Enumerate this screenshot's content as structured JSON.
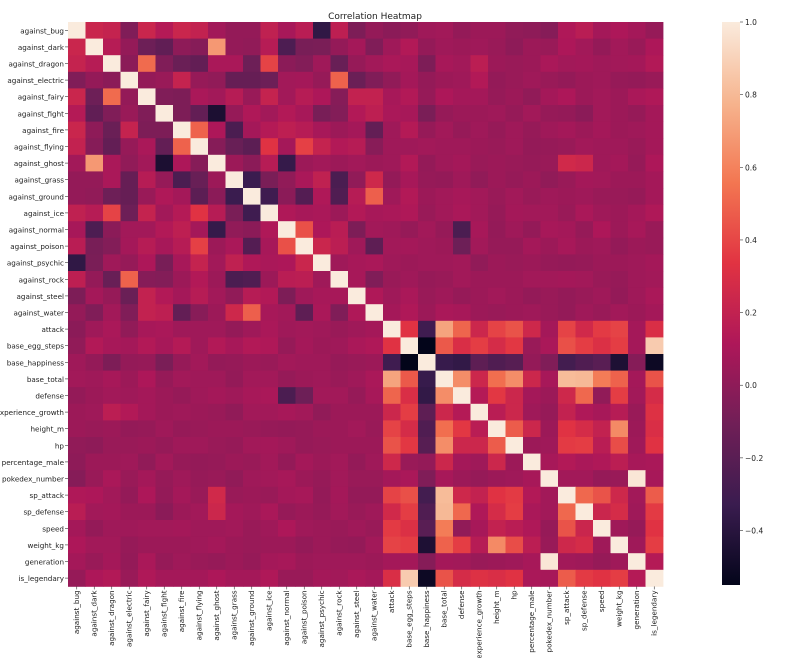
{
  "chart_data": {
    "type": "heatmap",
    "title": "Correlation Heatmap",
    "labels": [
      "against_bug",
      "against_dark",
      "against_dragon",
      "against_electric",
      "against_fairy",
      "against_fight",
      "against_fire",
      "against_flying",
      "against_ghost",
      "against_grass",
      "against_ground",
      "against_ice",
      "against_normal",
      "against_poison",
      "against_psychic",
      "against_rock",
      "against_steel",
      "against_water",
      "attack",
      "base_egg_steps",
      "base_happiness",
      "base_total",
      "defense",
      "experience_growth",
      "height_m",
      "hp",
      "percentage_male",
      "pokedex_number",
      "sp_attack",
      "sp_defense",
      "speed",
      "weight_kg",
      "generation",
      "is_legendary"
    ],
    "colorbar": {
      "min": -0.55,
      "max": 1.0,
      "ticks": [
        -0.4,
        -0.2,
        0.0,
        0.2,
        0.4,
        0.6,
        0.8,
        1.0
      ],
      "tick_labels": [
        "−0.4",
        "−0.2",
        "0.0",
        "0.2",
        "0.4",
        "0.6",
        "0.8",
        "1.0"
      ]
    },
    "colormap": [
      "#03051a",
      "#3a1c4f",
      "#701f57",
      "#ae1759",
      "#e13342",
      "#f37651",
      "#f6b48e",
      "#faebdd"
    ],
    "matrix": [
      [
        1,
        0.23,
        0.21,
        -0.05,
        0.23,
        0.14,
        0.23,
        0.2,
        0.07,
        0.02,
        0.02,
        0.19,
        0.09,
        0.16,
        -0.37,
        0.18,
        -0.06,
        0.02,
        -0.01,
        0.01,
        0.06,
        0.07,
        0.02,
        0.05,
        0.05,
        0.01,
        0,
        -0.03,
        0.12,
        0.16,
        0.08,
        0.11,
        0.08,
        0.03
      ],
      [
        0.23,
        1,
        0.15,
        0.02,
        -0.12,
        -0.17,
        0,
        -0.03,
        0.68,
        0.02,
        0.01,
        0.15,
        -0.25,
        -0.08,
        -0.07,
        0.02,
        0.08,
        -0.05,
        0.06,
        0.13,
        0.02,
        0.06,
        0.05,
        0.06,
        0.04,
        0,
        0.05,
        0.04,
        0.11,
        0.07,
        0.02,
        0.07,
        0.04,
        0.11
      ],
      [
        0.21,
        0.15,
        1,
        -0.01,
        0.52,
        -0.05,
        -0.13,
        -0.16,
        0.1,
        0.1,
        -0.12,
        0.39,
        -0.01,
        -0.04,
        0.06,
        -0.14,
        0.03,
        0.07,
        0.1,
        0.09,
        -0.06,
        0.09,
        0.07,
        0.17,
        0.05,
        0.04,
        0.05,
        0.1,
        0.07,
        0.08,
        0.06,
        0.07,
        0.08,
        0.13
      ],
      [
        -0.05,
        0.02,
        -0.01,
        1,
        0.02,
        0.04,
        0.21,
        0.03,
        0.01,
        -0.15,
        -0.15,
        -0.12,
        0.07,
        0.08,
        0.03,
        0.49,
        -0.13,
        -0.05,
        0.01,
        0.08,
        0.02,
        0.05,
        0.06,
        0.13,
        0.02,
        0.04,
        0.06,
        0.04,
        0.02,
        0.05,
        0.06,
        0.03,
        0.02,
        0.04
      ],
      [
        0.23,
        -0.12,
        0.52,
        0.02,
        1,
        -0.05,
        -0.06,
        0.1,
        0.07,
        0.15,
        0.04,
        0.21,
        0.07,
        0.15,
        0.11,
        -0.03,
        0.2,
        0.2,
        0.09,
        0.13,
        0.03,
        0.11,
        0.08,
        0.08,
        0.03,
        0.05,
        0.01,
        0.08,
        0.11,
        0.05,
        0.07,
        0.05,
        0.1,
        0.12
      ],
      [
        0.14,
        -0.17,
        -0.05,
        0.04,
        -0.05,
        1,
        -0.06,
        -0.16,
        -0.45,
        0.03,
        0.12,
        0.07,
        0.13,
        0.09,
        -0.08,
        -0.04,
        0.13,
        0.18,
        0.1,
        0.09,
        -0.07,
        0.03,
        0.05,
        0.05,
        0.06,
        0.03,
        0.07,
        0.03,
        0.02,
        -0.01,
        0.07,
        0.05,
        0.03,
        0.08
      ],
      [
        0.23,
        0,
        -0.13,
        0.21,
        -0.06,
        -0.06,
        1,
        0.49,
        0.11,
        -0.26,
        0.08,
        0.14,
        0.18,
        0.15,
        0.09,
        0.05,
        0.08,
        -0.16,
        0.06,
        0.14,
        0.03,
        0.07,
        0.03,
        0.06,
        0.03,
        0.06,
        0.03,
        0.06,
        0.08,
        0.05,
        0.08,
        0.05,
        0.06,
        0.08
      ],
      [
        0.2,
        -0.03,
        -0.16,
        0.03,
        0.1,
        -0.16,
        0.49,
        1,
        -0.03,
        -0.14,
        -0.19,
        0.33,
        0.08,
        0.38,
        0.21,
        0.13,
        0.15,
        -0.02,
        0.06,
        0.06,
        0.07,
        0.06,
        0.06,
        0.05,
        0.04,
        0.06,
        0.02,
        0.03,
        0.04,
        0.07,
        0.06,
        0.06,
        0.04,
        0.08
      ],
      [
        0.07,
        0.68,
        0.1,
        0.01,
        0.07,
        -0.45,
        0.11,
        -0.03,
        1,
        0.05,
        -0.01,
        0.15,
        -0.35,
        0.05,
        0.07,
        0.05,
        0.07,
        0.05,
        0.06,
        0.13,
        0.02,
        0.06,
        0.08,
        0.04,
        0.05,
        0.04,
        0.03,
        0.04,
        0.26,
        0.24,
        0.06,
        0.08,
        0.03,
        0.11
      ],
      [
        0.02,
        0.02,
        0.1,
        -0.15,
        0.15,
        0.03,
        -0.26,
        -0.14,
        0.05,
        1,
        -0.33,
        -0.07,
        0.01,
        0.1,
        0.19,
        -0.26,
        0.01,
        0.25,
        0.02,
        0.09,
        0.03,
        0.02,
        0.06,
        0.01,
        0.05,
        0.03,
        0.05,
        0.01,
        0.04,
        0.08,
        0.07,
        0.05,
        0.05,
        0.08
      ],
      [
        0.02,
        0.01,
        -0.12,
        -0.15,
        0.04,
        0.12,
        0.08,
        -0.19,
        -0.01,
        -0.33,
        1,
        -0.31,
        -0.01,
        -0.22,
        0.12,
        -0.24,
        0.15,
        0.48,
        0.06,
        0.13,
        0.05,
        0.07,
        0.09,
        0.07,
        0.04,
        0.07,
        0.04,
        0.06,
        0.05,
        0.06,
        0.04,
        0.04,
        0.03,
        0.08
      ],
      [
        0.19,
        0.15,
        0.39,
        -0.12,
        0.21,
        0.07,
        0.14,
        0.33,
        0.15,
        -0.07,
        -0.31,
        1,
        0.12,
        0.09,
        0.1,
        0.05,
        0.13,
        0.09,
        0.1,
        0.12,
        0.04,
        0.07,
        0.1,
        0.07,
        0.03,
        0.08,
        0.07,
        0.07,
        0.04,
        0.1,
        0.06,
        0.05,
        0.08,
        0.12
      ],
      [
        0.09,
        -0.25,
        -0.01,
        0.07,
        0.07,
        0.13,
        0.18,
        0.08,
        -0.35,
        0.01,
        -0.01,
        0.12,
        1,
        0.43,
        0.11,
        0.16,
        -0.06,
        0.07,
        0.06,
        0.03,
        0.07,
        0.03,
        -0.26,
        0.09,
        0.02,
        0.06,
        0.02,
        0.09,
        0.08,
        0.03,
        0.11,
        0.05,
        0.09,
        0.04
      ],
      [
        0.16,
        -0.08,
        -0.04,
        0.08,
        0.15,
        0.09,
        0.15,
        0.38,
        0.05,
        0.1,
        -0.22,
        0.09,
        0.43,
        1,
        0.23,
        0.17,
        0.06,
        -0.18,
        0.07,
        0.08,
        0.06,
        0.05,
        -0.12,
        0.07,
        0.03,
        0.03,
        0.08,
        0.05,
        0.09,
        0.05,
        0.06,
        0.02,
        0.05,
        0.04
      ],
      [
        -0.37,
        -0.07,
        0.06,
        0.03,
        0.11,
        -0.08,
        0.09,
        0.21,
        0.07,
        0.19,
        0.12,
        0.1,
        0.11,
        0.23,
        1,
        0.06,
        0.09,
        0.1,
        0.06,
        0.05,
        0.06,
        0.06,
        0.07,
        0.01,
        0.05,
        0.04,
        0.05,
        0.03,
        0.02,
        0.03,
        0.05,
        0.05,
        0.06,
        0.08
      ],
      [
        0.18,
        0.02,
        -0.14,
        0.49,
        -0.03,
        -0.04,
        0.05,
        0.13,
        0.05,
        -0.26,
        -0.24,
        0.05,
        0.16,
        0.17,
        0.06,
        1,
        0.09,
        -0.05,
        0.04,
        0.06,
        0.03,
        0.04,
        0.07,
        0.05,
        0.05,
        0.05,
        0.07,
        0.07,
        0.08,
        0.07,
        0.04,
        0.03,
        0.06,
        0.07
      ],
      [
        -0.06,
        0.08,
        0.03,
        -0.13,
        0.2,
        0.13,
        0.08,
        0.15,
        0.07,
        0.01,
        0.15,
        0.13,
        -0.06,
        0.06,
        0.09,
        0.09,
        1,
        0.12,
        0.06,
        0.1,
        0.04,
        0.06,
        0.03,
        0.05,
        0.07,
        0.05,
        0.02,
        0.04,
        0.02,
        0.04,
        0.06,
        0.02,
        0.06,
        0.1
      ],
      [
        0.02,
        -0.05,
        0.07,
        -0.05,
        0.2,
        0.18,
        -0.16,
        -0.02,
        0.05,
        0.25,
        0.48,
        0.09,
        0.07,
        -0.18,
        0.1,
        -0.05,
        0.12,
        1,
        0.08,
        0.12,
        0.05,
        0.1,
        0.09,
        0.05,
        0.04,
        0.05,
        0.06,
        0.04,
        0.02,
        0.06,
        0.04,
        0.07,
        0.05,
        0.08
      ],
      [
        -0.01,
        0.06,
        0.1,
        0.01,
        0.09,
        0.1,
        0.06,
        0.06,
        0.06,
        0.02,
        0.06,
        0.1,
        0.06,
        0.07,
        0.06,
        0.04,
        0.06,
        0.08,
        1,
        0.33,
        -0.31,
        0.72,
        0.5,
        0.24,
        0.39,
        0.44,
        0.25,
        0.08,
        0.39,
        0.26,
        0.36,
        0.39,
        0.08,
        0.3
      ],
      [
        0.01,
        0.13,
        0.09,
        0.08,
        0.13,
        0.09,
        0.14,
        0.06,
        0.13,
        0.09,
        0.13,
        0.12,
        0.03,
        0.08,
        0.05,
        0.06,
        0.1,
        0.12,
        0.33,
        1,
        -0.55,
        0.46,
        0.3,
        0.37,
        0.28,
        0.35,
        0.04,
        0.1,
        0.43,
        0.37,
        0.31,
        0.37,
        0.08,
        0.87
      ],
      [
        0.06,
        0.02,
        -0.06,
        0.02,
        0.03,
        -0.07,
        0.03,
        0.07,
        0.02,
        0.03,
        0.05,
        0.04,
        0.07,
        0.06,
        0.06,
        0.03,
        0.04,
        0.05,
        -0.31,
        -0.55,
        1,
        -0.34,
        -0.36,
        -0.18,
        -0.24,
        -0.21,
        0.02,
        -0.05,
        -0.29,
        -0.24,
        -0.2,
        -0.44,
        -0.03,
        -0.51
      ],
      [
        0.07,
        0.06,
        0.09,
        0.05,
        0.11,
        0.03,
        0.07,
        0.06,
        0.06,
        0.02,
        0.07,
        0.07,
        0.03,
        0.05,
        0.06,
        0.04,
        0.06,
        0.1,
        0.72,
        0.46,
        -0.34,
        1,
        0.64,
        0.24,
        0.53,
        0.64,
        0.24,
        0.09,
        0.81,
        0.8,
        0.58,
        0.49,
        0.08,
        0.44
      ],
      [
        0.02,
        0.05,
        0.07,
        0.06,
        0.08,
        0.05,
        0.03,
        0.06,
        0.08,
        0.06,
        0.09,
        0.1,
        -0.26,
        -0.12,
        0.07,
        0.07,
        0.03,
        0.09,
        0.5,
        0.3,
        -0.36,
        0.64,
        1,
        0.14,
        0.35,
        0.24,
        0.08,
        0.05,
        0.25,
        0.51,
        0.01,
        0.37,
        0.07,
        0.28
      ],
      [
        0.05,
        0.06,
        0.17,
        0.13,
        0.08,
        0.05,
        0.06,
        0.05,
        0.04,
        0.01,
        0.07,
        0.07,
        0.09,
        0.07,
        0.01,
        0.05,
        0.05,
        0.05,
        0.24,
        0.37,
        -0.18,
        0.24,
        0.14,
        1,
        0.16,
        0.24,
        0.06,
        0.03,
        0.2,
        0.12,
        0.09,
        0.15,
        0.04,
        0.32
      ],
      [
        0.05,
        0.04,
        0.05,
        0.02,
        0.03,
        0.06,
        0.03,
        0.04,
        0.05,
        0.05,
        0.04,
        0.03,
        0.02,
        0.03,
        0.05,
        0.05,
        0.07,
        0.04,
        0.39,
        0.28,
        -0.24,
        0.53,
        0.35,
        0.16,
        1,
        0.47,
        0.24,
        0.05,
        0.33,
        0.28,
        0.2,
        0.63,
        0.05,
        0.3
      ],
      [
        0.01,
        0,
        0.04,
        0.04,
        0.05,
        0.03,
        0.06,
        0.06,
        0.04,
        0.03,
        0.07,
        0.08,
        0.06,
        0.03,
        0.04,
        0.05,
        0.05,
        0.05,
        0.44,
        0.35,
        -0.21,
        0.64,
        0.24,
        0.24,
        0.47,
        1,
        0.05,
        0.06,
        0.36,
        0.37,
        0.16,
        0.42,
        0.06,
        0.33
      ],
      [
        0,
        0.05,
        0.05,
        0.06,
        0.01,
        0.07,
        0.03,
        0.02,
        0.03,
        0.05,
        0.04,
        0.07,
        0.02,
        0.08,
        0.05,
        0.07,
        0.02,
        0.06,
        0.25,
        0.04,
        0.02,
        0.24,
        0.08,
        0.06,
        0.24,
        0.05,
        1,
        0.09,
        0.13,
        0.1,
        0.12,
        0.17,
        0.09,
        0.1
      ],
      [
        -0.03,
        0.04,
        0.1,
        0.04,
        0.08,
        0.03,
        0.06,
        0.03,
        0.04,
        0.01,
        0.06,
        0.07,
        0.09,
        0.05,
        0.03,
        0.07,
        0.04,
        0.04,
        0.08,
        0.1,
        -0.05,
        0.09,
        0.05,
        0.03,
        0.05,
        0.06,
        0.09,
        1,
        0.07,
        0.07,
        0.03,
        0.04,
        0.98,
        0.09
      ],
      [
        0.12,
        0.11,
        0.07,
        0.02,
        0.11,
        0.02,
        0.08,
        0.04,
        0.26,
        0.04,
        0.05,
        0.04,
        0.08,
        0.09,
        0.02,
        0.08,
        0.02,
        0.02,
        0.39,
        0.43,
        -0.29,
        0.81,
        0.25,
        0.2,
        0.33,
        0.36,
        0.13,
        0.07,
        1,
        0.51,
        0.44,
        0.25,
        0.07,
        0.47
      ],
      [
        0.16,
        0.07,
        0.08,
        0.05,
        0.05,
        -0.01,
        0.05,
        0.07,
        0.24,
        0.08,
        0.06,
        0.1,
        0.03,
        0.05,
        0.03,
        0.07,
        0.04,
        0.06,
        0.26,
        0.37,
        -0.24,
        0.8,
        0.51,
        0.12,
        0.28,
        0.37,
        0.1,
        0.07,
        0.51,
        1,
        0.23,
        0.28,
        0.06,
        0.36
      ],
      [
        0.08,
        0.02,
        0.06,
        0.06,
        0.07,
        0.07,
        0.08,
        0.06,
        0.06,
        0.07,
        0.04,
        0.06,
        0.11,
        0.06,
        0.05,
        0.04,
        0.06,
        0.04,
        0.36,
        0.31,
        -0.2,
        0.58,
        0.01,
        0.09,
        0.2,
        0.16,
        0.12,
        0.03,
        0.44,
        0.23,
        1,
        0.06,
        0.03,
        0.33
      ],
      [
        0.11,
        0.07,
        0.07,
        0.03,
        0.05,
        0.05,
        0.05,
        0.06,
        0.08,
        0.05,
        0.04,
        0.05,
        0.05,
        0.02,
        0.05,
        0.03,
        0.02,
        0.07,
        0.39,
        0.37,
        -0.44,
        0.49,
        0.37,
        0.15,
        0.63,
        0.42,
        0.17,
        0.04,
        0.25,
        0.28,
        0.06,
        1,
        0.06,
        0.37
      ],
      [
        0.08,
        0.04,
        0.08,
        0.02,
        0.1,
        0.03,
        0.06,
        0.04,
        0.03,
        0.05,
        0.03,
        0.08,
        0.09,
        0.05,
        0.06,
        0.06,
        0.06,
        0.05,
        0.08,
        0.08,
        -0.03,
        0.08,
        0.07,
        0.04,
        0.05,
        0.06,
        0.09,
        0.98,
        0.07,
        0.06,
        0.03,
        0.06,
        1,
        0.14
      ],
      [
        0.03,
        0.11,
        0.13,
        0.04,
        0.12,
        0.08,
        0.08,
        0.08,
        0.11,
        0.08,
        0.08,
        0.12,
        0.04,
        0.04,
        0.08,
        0.07,
        0.1,
        0.08,
        0.3,
        0.87,
        -0.51,
        0.44,
        0.28,
        0.32,
        0.3,
        0.33,
        0.1,
        0.09,
        0.47,
        0.36,
        0.33,
        0.37,
        0.14,
        1
      ]
    ]
  }
}
